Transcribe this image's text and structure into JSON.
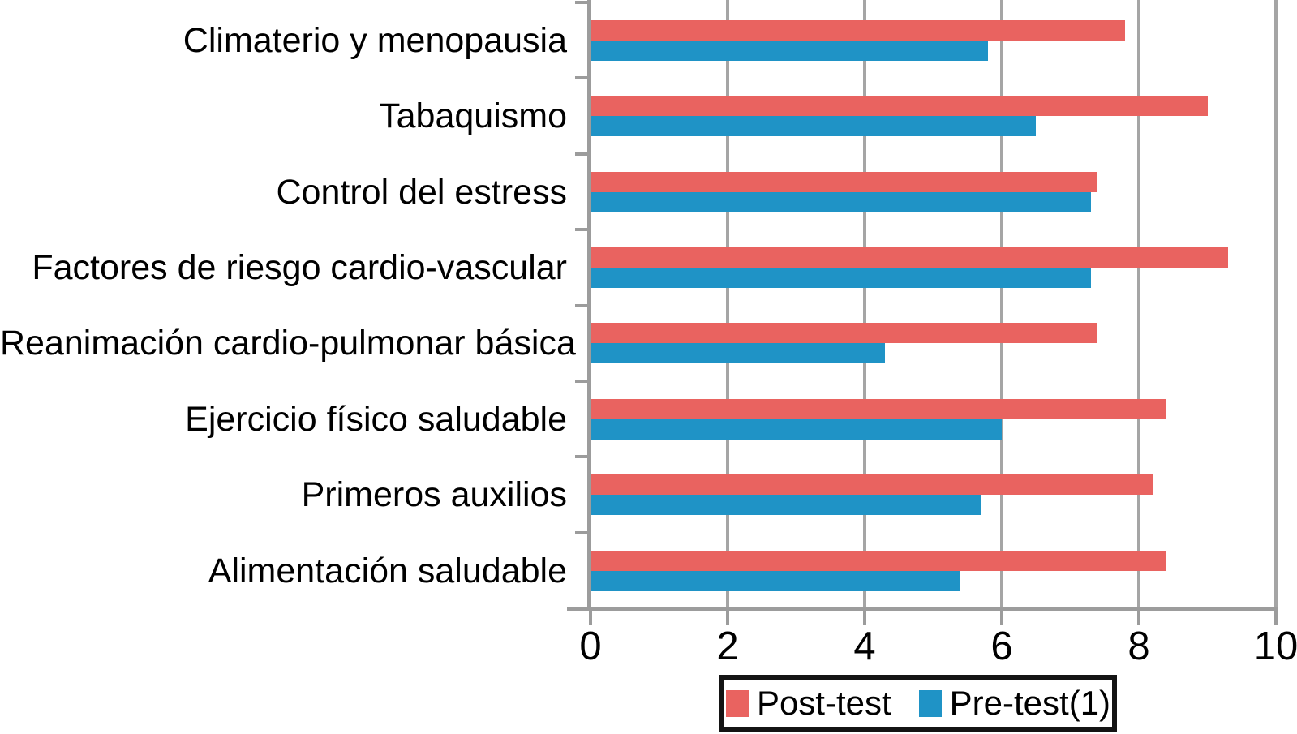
{
  "chart_data": {
    "type": "bar",
    "orientation": "horizontal",
    "title": "",
    "xlabel": "",
    "ylabel": "",
    "categories": [
      "Climaterio y menopausia",
      "Tabaquismo",
      "Control del estress",
      "Factores de riesgo cardio-vascular",
      "Reanimación cardio-pulmonar básica",
      "Ejercicio físico saludable",
      "Primeros auxilios",
      "Alimentación saludable"
    ],
    "series": [
      {
        "name": "Post-test",
        "color": "#e96360",
        "values": [
          7.8,
          9.0,
          7.4,
          9.3,
          7.4,
          8.4,
          8.2,
          8.4
        ]
      },
      {
        "name": "Pre-test(1)",
        "color": "#1f93c6",
        "values": [
          5.8,
          6.5,
          7.3,
          7.3,
          4.3,
          6.0,
          5.7,
          5.4
        ]
      }
    ],
    "xlim": [
      0,
      10
    ],
    "x_ticks": [
      0,
      2,
      4,
      6,
      8,
      10
    ],
    "grid": "vertical",
    "legend_position": "bottom-center",
    "legend_border_color": "#141414",
    "axis_color": "#9c9c9c",
    "gridline_color": "#a5a5a5",
    "text_color": "#000000",
    "background": "#ffffff"
  }
}
